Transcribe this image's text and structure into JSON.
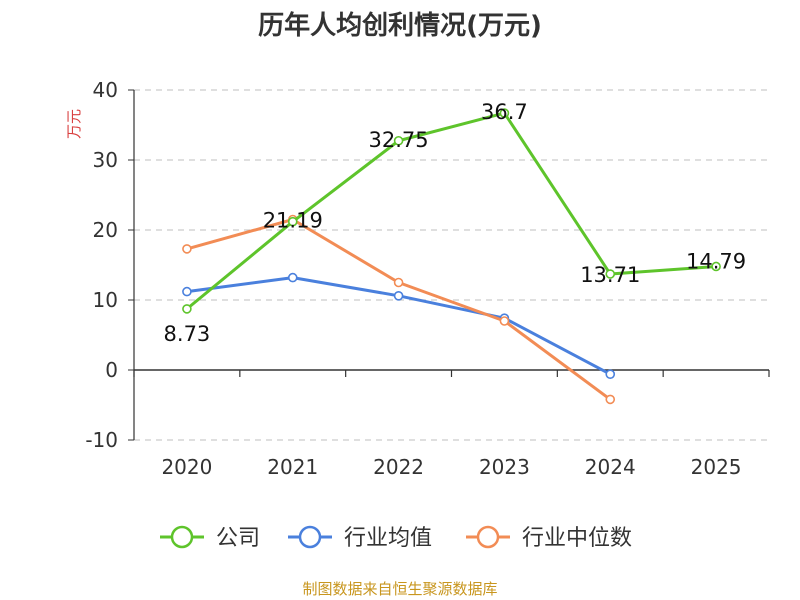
{
  "chart_data": {
    "type": "line",
    "title": "历年人均创利情况(万元)",
    "ylabel": "万元",
    "categories": [
      "2020",
      "2021",
      "2022",
      "2023",
      "2024",
      "2025"
    ],
    "ylim": [
      -10,
      40
    ],
    "yticks": [
      -10,
      0,
      10,
      20,
      30,
      40
    ],
    "grid": true,
    "legend_position": "bottom",
    "series": [
      {
        "name": "公司",
        "color": "#5ec42b",
        "values": [
          8.73,
          21.19,
          32.75,
          36.7,
          13.71,
          14.79
        ],
        "show_labels": true
      },
      {
        "name": "行业均值",
        "color": "#4a80dd",
        "values": [
          11.2,
          13.2,
          10.6,
          7.4,
          -0.6,
          null
        ],
        "show_labels": false
      },
      {
        "name": "行业中位数",
        "color": "#f28c55",
        "values": [
          17.3,
          21.5,
          12.5,
          7.0,
          -4.2,
          null
        ],
        "show_labels": false
      }
    ],
    "data_labels": [
      "8.73",
      "21.19",
      "32.75",
      "36.7",
      "13.71",
      "14.79"
    ],
    "source": "制图数据来自恒生聚源数据库",
    "source_color": "#c8961e",
    "ylabel_color": "#d94040"
  }
}
